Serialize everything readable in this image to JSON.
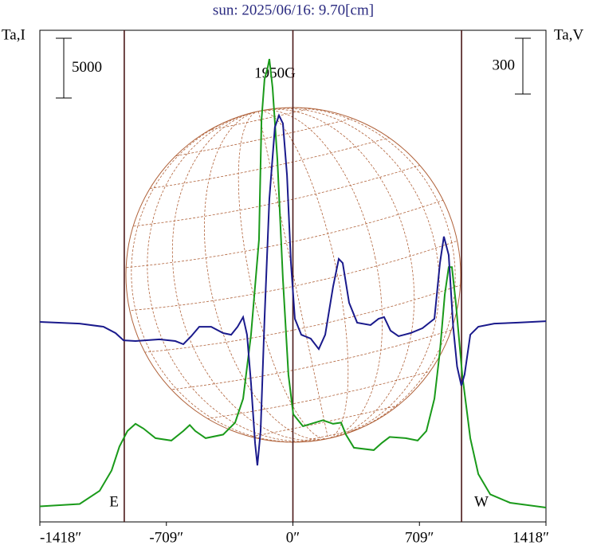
{
  "chart_data": {
    "type": "line",
    "title": "sun: 2025/06/16: 9.70[cm]",
    "y_label": "Ta,I",
    "y2_label": "Ta,V",
    "annotations": [
      "1950G",
      "E",
      "W"
    ],
    "xlim": [
      -1418,
      1418
    ],
    "xticks": [
      {
        "value": -1418,
        "label": "-1418″"
      },
      {
        "value": -709,
        "label": "-709″"
      },
      {
        "value": 0,
        "label": "0″"
      },
      {
        "value": 709,
        "label": "709″"
      },
      {
        "value": 1418,
        "label": "1418″"
      }
    ],
    "ylim": [
      -1300,
      39800
    ],
    "y2lim": [
      -1076,
      1569
    ],
    "scale_bars": [
      {
        "axis": "y",
        "value": 5000,
        "label": "5000"
      },
      {
        "axis": "y2",
        "value": 300,
        "label": "300"
      }
    ],
    "vlines": [
      -945,
      0,
      945
    ],
    "vline_color": "#4a1818",
    "series": [
      {
        "name": "I",
        "color": "#1a9a1a",
        "x": [
          -1418,
          -1195,
          -1083,
          -1016,
          -972,
          -927,
          -882,
          -837,
          -770,
          -681,
          -614,
          -578,
          -547,
          -489,
          -391,
          -324,
          -279,
          -235,
          -190,
          -176,
          -159,
          -141,
          -132,
          -114,
          -87,
          -56,
          -25,
          2,
          56,
          123,
          168,
          225,
          270,
          297,
          342,
          453,
          498,
          542,
          632,
          699,
          748,
          793,
          824,
          851,
          873,
          891,
          913,
          949,
          994,
          1039,
          1106,
          1217,
          1418
        ],
        "values": [
          0,
          200,
          1300,
          3000,
          5000,
          6300,
          6900,
          6500,
          5700,
          5500,
          6300,
          6800,
          6300,
          5700,
          6000,
          7000,
          9000,
          14300,
          22300,
          32300,
          35700,
          36700,
          37400,
          35000,
          29000,
          19000,
          11000,
          7700,
          6700,
          7000,
          7200,
          6900,
          7000,
          6000,
          4900,
          4700,
          5300,
          5800,
          5700,
          5500,
          6300,
          9000,
          13000,
          17700,
          20000,
          20000,
          17000,
          11000,
          5700,
          2700,
          1000,
          300,
          -100
        ]
      },
      {
        "name": "V",
        "color": "#1a1a8c",
        "axis": "y2",
        "x": [
          -1418,
          -1195,
          -1061,
          -994,
          -949,
          -882,
          -748,
          -659,
          -614,
          -570,
          -525,
          -458,
          -391,
          -346,
          -310,
          -279,
          -257,
          -235,
          -212,
          -199,
          -181,
          -159,
          -132,
          -101,
          -78,
          -56,
          -33,
          -11,
          11,
          47,
          100,
          145,
          181,
          225,
          257,
          279,
          315,
          360,
          435,
          480,
          511,
          547,
          592,
          659,
          726,
          793,
          824,
          846,
          873,
          898,
          920,
          944,
          962,
          994,
          1039,
          1128,
          1262,
          1418
        ],
        "values": [
          0,
          -9,
          -26,
          -60,
          -99,
          -103,
          -94,
          -103,
          -120,
          -77,
          -26,
          -26,
          -60,
          -69,
          -26,
          26,
          -69,
          -326,
          -652,
          -772,
          -587,
          17,
          661,
          1047,
          1111,
          1068,
          789,
          317,
          17,
          -69,
          -90,
          -146,
          -69,
          189,
          339,
          317,
          103,
          -4,
          -17,
          17,
          26,
          -47,
          -77,
          -60,
          -34,
          17,
          317,
          459,
          360,
          -26,
          -240,
          -343,
          -283,
          -69,
          -26,
          -9,
          -4,
          4
        ]
      }
    ]
  }
}
